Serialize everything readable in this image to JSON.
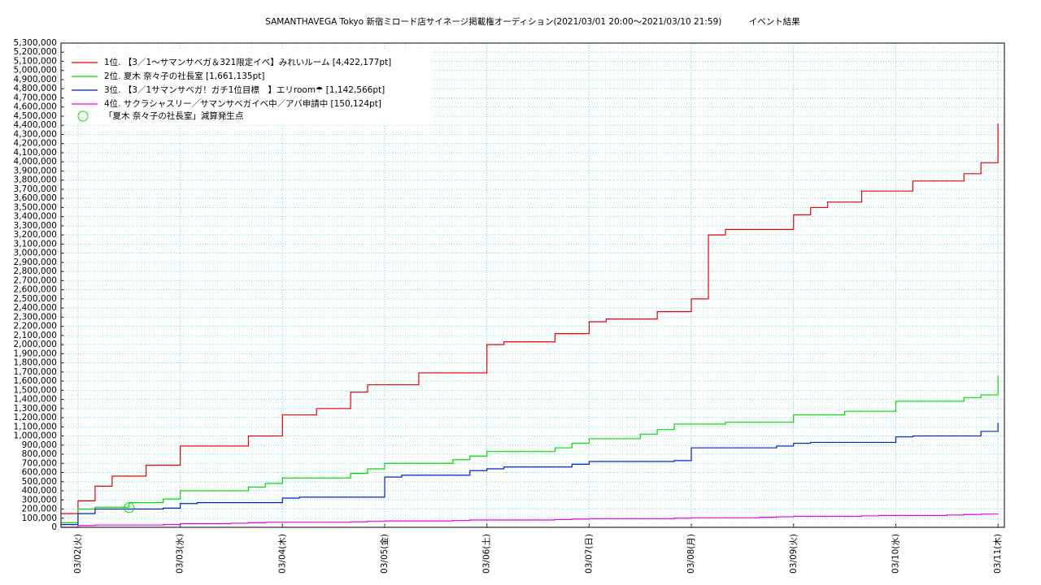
{
  "chart_data": {
    "type": "step",
    "title": "SAMANTHAVEGA Tokyo 新宿ミロード店サイネージ掲載権オーディション(2021/03/01 20:00～2021/03/10 21:59)          イベント結果",
    "x": [
      "03/01 20:00",
      "03/02 00:00",
      "03/02 04:00",
      "03/02 08:00",
      "03/02 12:00",
      "03/02 16:00",
      "03/02 20:00",
      "03/03 00:00",
      "03/03 04:00",
      "03/03 08:00",
      "03/03 12:00",
      "03/03 16:00",
      "03/03 20:00",
      "03/04 00:00",
      "03/04 04:00",
      "03/04 08:00",
      "03/04 12:00",
      "03/04 16:00",
      "03/04 20:00",
      "03/05 00:00",
      "03/05 04:00",
      "03/05 08:00",
      "03/05 12:00",
      "03/05 16:00",
      "03/05 20:00",
      "03/06 00:00",
      "03/06 04:00",
      "03/06 08:00",
      "03/06 12:00",
      "03/06 16:00",
      "03/06 20:00",
      "03/07 00:00",
      "03/07 04:00",
      "03/07 08:00",
      "03/07 12:00",
      "03/07 16:00",
      "03/07 20:00",
      "03/08 00:00",
      "03/08 04:00",
      "03/08 08:00",
      "03/08 12:00",
      "03/08 16:00",
      "03/08 20:00",
      "03/09 00:00",
      "03/09 04:00",
      "03/09 08:00",
      "03/09 12:00",
      "03/09 16:00",
      "03/09 20:00",
      "03/10 00:00",
      "03/10 04:00",
      "03/10 08:00",
      "03/10 12:00",
      "03/10 16:00",
      "03/10 20:00",
      "03/11 00:00"
    ],
    "series": [
      {
        "name": "1位. 【3／1〜サマンサベガ＆321限定イベ】みれいルーム [4,422,177pt]",
        "color": "#ee0000",
        "values": [
          150000,
          290000,
          450000,
          560000,
          560000,
          680000,
          680000,
          890000,
          890000,
          890000,
          890000,
          1000000,
          1000000,
          1230000,
          1230000,
          1300000,
          1300000,
          1480000,
          1560000,
          1560000,
          1560000,
          1690000,
          1690000,
          1690000,
          1690000,
          2000000,
          2030000,
          2030000,
          2030000,
          2120000,
          2120000,
          2250000,
          2280000,
          2280000,
          2280000,
          2360000,
          2360000,
          2500000,
          3200000,
          3260000,
          3260000,
          3260000,
          3260000,
          3420000,
          3500000,
          3560000,
          3560000,
          3680000,
          3680000,
          3680000,
          3790000,
          3790000,
          3790000,
          3870000,
          3990000,
          4422177
        ]
      },
      {
        "name": "2位. 夏木 奈々子の社長室 [1,661,135pt]",
        "color": "#00dd00",
        "values": [
          50000,
          200000,
          220000,
          220000,
          270000,
          270000,
          310000,
          400000,
          400000,
          400000,
          400000,
          440000,
          480000,
          540000,
          540000,
          540000,
          540000,
          590000,
          640000,
          700000,
          700000,
          700000,
          700000,
          740000,
          780000,
          830000,
          830000,
          830000,
          830000,
          870000,
          920000,
          970000,
          970000,
          970000,
          1020000,
          1070000,
          1130000,
          1130000,
          1130000,
          1150000,
          1150000,
          1150000,
          1150000,
          1230000,
          1230000,
          1230000,
          1270000,
          1270000,
          1270000,
          1380000,
          1380000,
          1380000,
          1380000,
          1420000,
          1450000,
          1661135
        ]
      },
      {
        "name": "3位. 【3／1サマンサベガ！ガチ1位目標　】エリroom☂ [1,142,566pt]",
        "color": "#0020cc",
        "values": [
          30000,
          150000,
          200000,
          200000,
          200000,
          200000,
          210000,
          260000,
          270000,
          270000,
          270000,
          270000,
          270000,
          320000,
          330000,
          330000,
          330000,
          330000,
          330000,
          550000,
          570000,
          570000,
          570000,
          570000,
          620000,
          640000,
          660000,
          660000,
          660000,
          660000,
          690000,
          720000,
          720000,
          720000,
          720000,
          720000,
          730000,
          870000,
          870000,
          870000,
          870000,
          870000,
          890000,
          920000,
          930000,
          930000,
          930000,
          930000,
          930000,
          990000,
          1000000,
          1000000,
          1000000,
          1000000,
          1050000,
          1142566
        ]
      },
      {
        "name": "4位. サクラシャスリー／サマンサベガイベ中／アバ申請中 [150,124pt]",
        "color": "#ee00ee",
        "values": [
          0,
          20000,
          25000,
          25000,
          25000,
          25000,
          30000,
          40000,
          40000,
          40000,
          45000,
          50000,
          55000,
          55000,
          55000,
          55000,
          55000,
          60000,
          65000,
          70000,
          70000,
          70000,
          70000,
          75000,
          80000,
          80000,
          80000,
          80000,
          80000,
          85000,
          90000,
          95000,
          95000,
          95000,
          95000,
          95000,
          100000,
          105000,
          105000,
          105000,
          105000,
          110000,
          115000,
          120000,
          120000,
          120000,
          120000,
          125000,
          130000,
          130000,
          130000,
          130000,
          135000,
          140000,
          145000,
          150124
        ]
      }
    ],
    "markers": [
      {
        "name": "「夏木 奈々子の社長室」減算発生点",
        "color": "#00dd00",
        "x": [
          "03/02 12:00"
        ],
        "values": [
          215000
        ]
      }
    ],
    "xlim": [
      "03/01 20:00",
      "03/11 01:30"
    ],
    "xticks": [
      {
        "value": "03/02 00:00",
        "label": "03/02(火)"
      },
      {
        "value": "03/03 00:00",
        "label": "03/03(水)"
      },
      {
        "value": "03/04 00:00",
        "label": "03/04(木)"
      },
      {
        "value": "03/05 00:00",
        "label": "03/05(金)"
      },
      {
        "value": "03/06 00:00",
        "label": "03/06(土)"
      },
      {
        "value": "03/07 00:00",
        "label": "03/07(日)"
      },
      {
        "value": "03/08 00:00",
        "label": "03/08(月)"
      },
      {
        "value": "03/09 00:00",
        "label": "03/09(火)"
      },
      {
        "value": "03/10 00:00",
        "label": "03/10(水)"
      },
      {
        "value": "03/11 00:00",
        "label": "03/11(木)"
      }
    ],
    "ylim": [
      0,
      5300000
    ],
    "yticks": [
      0,
      {
        "value": 100000,
        "label": "100,000"
      },
      {
        "value": 200000,
        "label": "200,000"
      },
      {
        "value": 300000,
        "label": "300,000"
      },
      {
        "value": 400000,
        "label": "400,000"
      },
      {
        "value": 500000,
        "label": "500,000"
      },
      {
        "value": 600000,
        "label": "600,000"
      },
      {
        "value": 700000,
        "label": "700,000"
      },
      {
        "value": 800000,
        "label": "800,000"
      },
      {
        "value": 900000,
        "label": "900,000"
      },
      {
        "value": 1000000,
        "label": "1,000,000"
      },
      {
        "value": 1100000,
        "label": "1,100,000"
      },
      {
        "value": 1200000,
        "label": "1,200,000"
      },
      {
        "value": 1300000,
        "label": "1,300,000"
      },
      {
        "value": 1400000,
        "label": "1,400,000"
      },
      {
        "value": 1500000,
        "label": "1,500,000"
      },
      {
        "value": 1600000,
        "label": "1,600,000"
      },
      {
        "value": 1700000,
        "label": "1,700,000"
      },
      {
        "value": 1800000,
        "label": "1,800,000"
      },
      {
        "value": 1900000,
        "label": "1,900,000"
      },
      {
        "value": 2000000,
        "label": "2,000,000"
      },
      {
        "value": 2100000,
        "label": "2,100,000"
      },
      {
        "value": 2200000,
        "label": "2,200,000"
      },
      {
        "value": 2300000,
        "label": "2,300,000"
      },
      {
        "value": 2400000,
        "label": "2,400,000"
      },
      {
        "value": 2500000,
        "label": "2,500,000"
      },
      {
        "value": 2600000,
        "label": "2,600,000"
      },
      {
        "value": 2700000,
        "label": "2,700,000"
      },
      {
        "value": 2800000,
        "label": "2,800,000"
      },
      {
        "value": 2900000,
        "label": "2,900,000"
      },
      {
        "value": 3000000,
        "label": "3,000,000"
      },
      {
        "value": 3100000,
        "label": "3,100,000"
      },
      {
        "value": 3200000,
        "label": "3,200,000"
      },
      {
        "value": 3300000,
        "label": "3,300,000"
      },
      {
        "value": 3400000,
        "label": "3,400,000"
      },
      {
        "value": 3500000,
        "label": "3,500,000"
      },
      {
        "value": 3600000,
        "label": "3,600,000"
      },
      {
        "value": 3700000,
        "label": "3,700,000"
      },
      {
        "value": 3800000,
        "label": "3,800,000"
      },
      {
        "value": 3900000,
        "label": "3,900,000"
      },
      {
        "value": 4000000,
        "label": "4,000,000"
      },
      {
        "value": 4100000,
        "label": "4,100,000"
      },
      {
        "value": 4200000,
        "label": "4,200,000"
      },
      {
        "value": 4300000,
        "label": "4,300,000"
      },
      {
        "value": 4400000,
        "label": "4,400,000"
      },
      {
        "value": 4500000,
        "label": "4,500,000"
      },
      {
        "value": 4600000,
        "label": "4,600,000"
      },
      {
        "value": 4700000,
        "label": "4,700,000"
      },
      {
        "value": 4800000,
        "label": "4,800,000"
      },
      {
        "value": 4900000,
        "label": "4,900,000"
      },
      {
        "value": 5000000,
        "label": "5,000,000"
      },
      {
        "value": 5100000,
        "label": "5,100,000"
      },
      {
        "value": 5200000,
        "label": "5,200,000"
      },
      {
        "value": 5300000,
        "label": "5,300,000"
      }
    ],
    "grid": true,
    "legend": "top-left"
  }
}
